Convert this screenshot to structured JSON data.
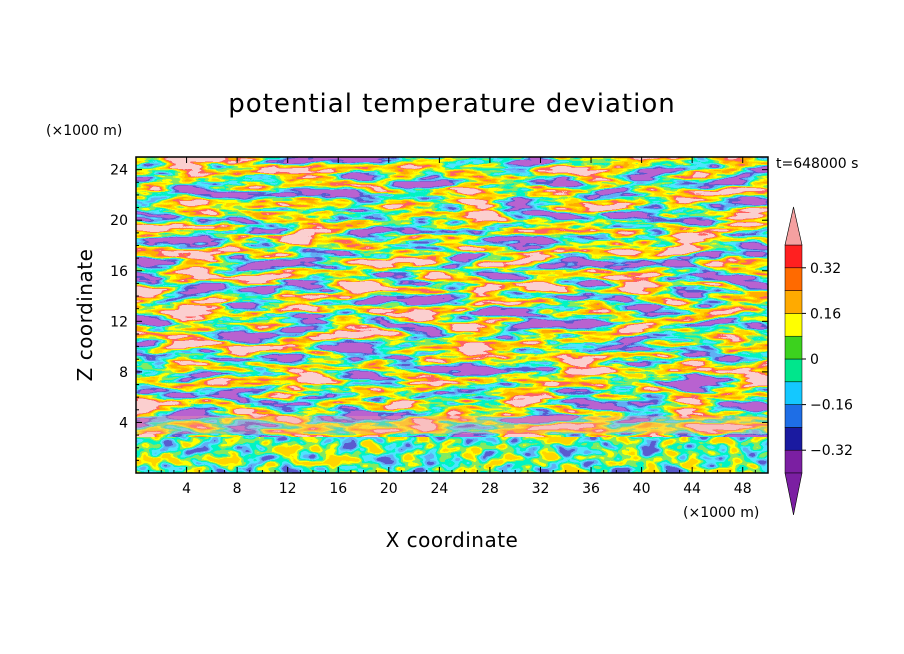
{
  "chart_data": {
    "type": "heatmap",
    "title": "potential temperature deviation",
    "time_label": "t=648000 s",
    "xlabel": "X coordinate",
    "ylabel": "Z coordinate",
    "x_unit": "(×1000 m)",
    "y_unit": "(×1000 m)",
    "xlim": [
      0,
      50
    ],
    "ylim": [
      0,
      25
    ],
    "x_ticks": [
      "4",
      "8",
      "12",
      "16",
      "20",
      "24",
      "28",
      "32",
      "36",
      "40",
      "44",
      "48"
    ],
    "y_ticks": [
      "4",
      "8",
      "12",
      "16",
      "20",
      "24"
    ],
    "colorbar": {
      "levels": [
        -0.4,
        -0.32,
        -0.24,
        -0.16,
        -0.08,
        0,
        0.08,
        0.16,
        0.24,
        0.32,
        0.4
      ],
      "labels": [
        "0.32",
        "0.16",
        "0",
        "−0.16",
        "−0.32"
      ],
      "label_values": [
        0.32,
        0.16,
        0,
        -0.16,
        -0.32
      ],
      "colors": [
        "#7b1fa2",
        "#1a1aa0",
        "#1e6ee6",
        "#14c8ff",
        "#00e68c",
        "#3cd21e",
        "#ffff00",
        "#ffaa00",
        "#ff6a00",
        "#ff2020",
        "#f5a0a0"
      ]
    }
  }
}
